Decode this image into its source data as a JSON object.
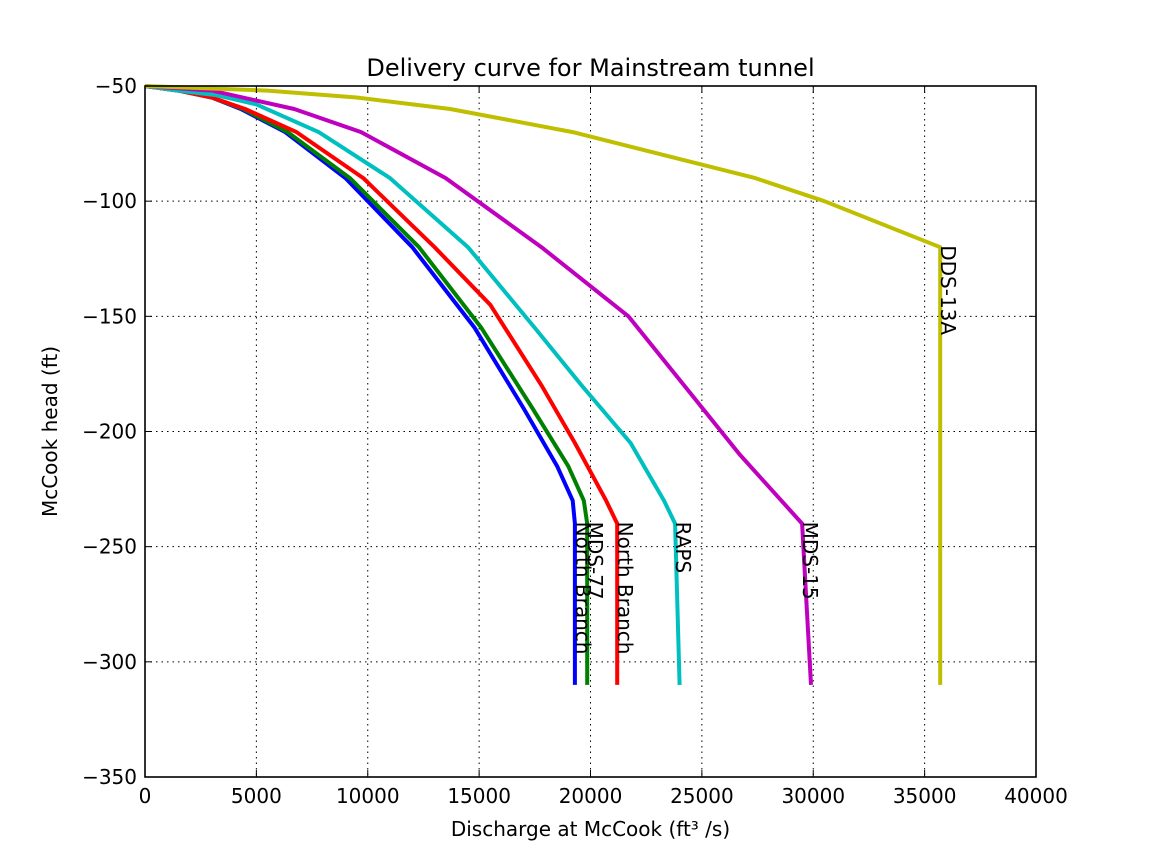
{
  "chart_data": {
    "type": "line",
    "title": "Delivery curve for Mainstream tunnel",
    "xlabel": "Discharge at McCook (ft³ /s)",
    "ylabel": "McCook head (ft)",
    "xlim": [
      0,
      40000
    ],
    "ylim": [
      -350,
      -50
    ],
    "xticks": [
      0,
      5000,
      10000,
      15000,
      20000,
      25000,
      30000,
      35000,
      40000
    ],
    "yticks": [
      -50,
      -100,
      -150,
      -200,
      -250,
      -300,
      -350
    ],
    "xtick_labels": [
      "0",
      "5000",
      "10000",
      "15000",
      "20000",
      "25000",
      "30000",
      "35000",
      "40000"
    ],
    "ytick_labels": [
      "−50",
      "−100",
      "−150",
      "−200",
      "−250",
      "−300",
      "−350"
    ],
    "grid": true,
    "series": [
      {
        "label": "North Branch",
        "color": "#0000ff",
        "x": [
          0,
          1500,
          3000,
          4300,
          6300,
          9000,
          12000,
          14800,
          17000,
          18500,
          19200,
          19300,
          19300
        ],
        "y": [
          -50,
          -52,
          -55,
          -60,
          -70,
          -90,
          -120,
          -155,
          -190,
          -215,
          -230,
          -240,
          -310
        ]
      },
      {
        "label": "MDS-77",
        "color": "#008000",
        "x": [
          0,
          1500,
          3000,
          4400,
          6400,
          9200,
          12300,
          15100,
          17400,
          19000,
          19700,
          19850,
          19850
        ],
        "y": [
          -50,
          -52,
          -55,
          -60,
          -70,
          -90,
          -120,
          -155,
          -190,
          -215,
          -230,
          -240,
          -310
        ]
      },
      {
        "label": "North Branch",
        "color": "#ff0000",
        "x": [
          0,
          1500,
          3000,
          4500,
          6800,
          9800,
          13000,
          15500,
          17800,
          19300,
          20700,
          21200,
          21200
        ],
        "y": [
          -50,
          -52,
          -55,
          -60,
          -70,
          -90,
          -120,
          -145,
          -180,
          -205,
          -230,
          -240,
          -310
        ]
      },
      {
        "label": "RAPS",
        "color": "#00bfbf",
        "x": [
          0,
          1500,
          3200,
          5000,
          7800,
          11000,
          14500,
          17500,
          19600,
          21800,
          23300,
          23800,
          24000
        ],
        "y": [
          -50,
          -52,
          -54,
          -58,
          -70,
          -90,
          -120,
          -155,
          -180,
          -205,
          -230,
          -240,
          -310
        ]
      },
      {
        "label": "MDS-15",
        "color": "#bf00bf",
        "x": [
          0,
          3000,
          6700,
          9700,
          13500,
          17800,
          21700,
          24200,
          26700,
          29500,
          29900
        ],
        "y": [
          -50,
          -52,
          -60,
          -70,
          -90,
          -120,
          -150,
          -180,
          -210,
          -240,
          -310
        ]
      },
      {
        "label": "DDS-13A",
        "color": "#bfbf00",
        "x": [
          0,
          5500,
          9500,
          13700,
          19200,
          27400,
          30500,
          35700,
          35700
        ],
        "y": [
          -50,
          -52,
          -55,
          -60,
          -70,
          -90,
          -100,
          -120,
          -310
        ]
      }
    ]
  }
}
